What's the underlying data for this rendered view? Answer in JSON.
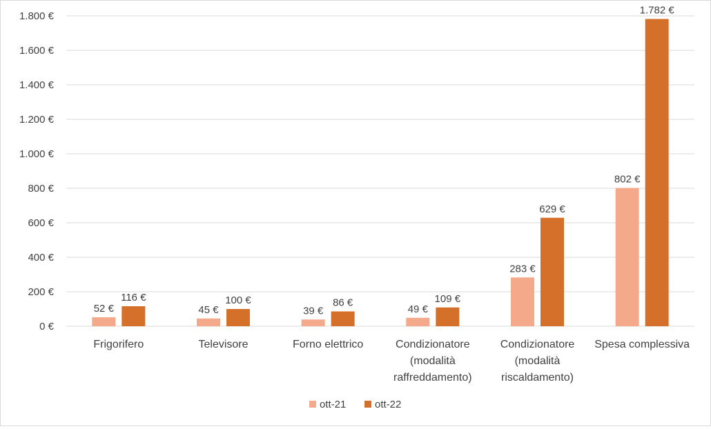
{
  "chart_data": {
    "type": "bar",
    "title": "",
    "xlabel": "",
    "ylabel": "",
    "categories": [
      [
        "Frigorifero"
      ],
      [
        "Televisore"
      ],
      [
        "Forno elettrico"
      ],
      [
        "Condizionatore",
        "(modalità",
        "raffreddamento)"
      ],
      [
        "Condizionatore",
        "(modalità",
        "riscaldamento)"
      ],
      [
        "Spesa complessiva"
      ]
    ],
    "series": [
      {
        "name": "ott-21",
        "color": "#F4A98A",
        "values": [
          52,
          45,
          39,
          49,
          283,
          802
        ],
        "labels": [
          "52 €",
          "45 €",
          "39 €",
          "49 €",
          "283 €",
          "802 €"
        ]
      },
      {
        "name": "ott-22",
        "color": "#D4702A",
        "values": [
          116,
          100,
          86,
          109,
          629,
          1782
        ],
        "labels": [
          "116 €",
          "100 €",
          "86 €",
          "109 €",
          "629 €",
          "1.782 €"
        ]
      }
    ],
    "ylim": [
      0,
      1800
    ],
    "yticks": [
      0,
      200,
      400,
      600,
      800,
      1000,
      1200,
      1400,
      1600,
      1800
    ],
    "ytick_labels": [
      "0 €",
      "200 €",
      "400 €",
      "600 €",
      "800 €",
      "1.000 €",
      "1.200 €",
      "1.400 €",
      "1.600 €",
      "1.800 €"
    ],
    "grid": true,
    "legend_position": "bottom-center"
  }
}
